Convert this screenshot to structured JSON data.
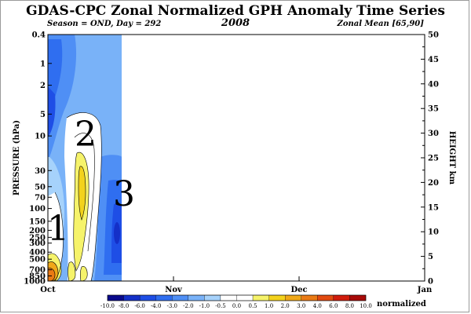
{
  "chart_data": {
    "type": "heatmap",
    "title": "GDAS-CPC Zonal Normalized GPH Anomaly Time Series",
    "subtitle_left": "Season = OND, Day = 292",
    "subtitle_center": "2008",
    "subtitle_right": "Zonal Mean [65,90]",
    "ylabel_left": "PRESSURE (hPa)",
    "ylabel_right": "HEIGHT  km",
    "pressure_ticks": [
      "0.4",
      "1",
      "2",
      "5",
      "10",
      "30",
      "50",
      "70",
      "100",
      "150",
      "200",
      "250",
      "300",
      "400",
      "500",
      "700",
      "850",
      "1000"
    ],
    "height_ticks": [
      "0",
      "5",
      "10",
      "15",
      "20",
      "25",
      "30",
      "35",
      "40",
      "45",
      "50"
    ],
    "x_ticks": [
      "Oct",
      "Nov",
      "Dec",
      "Jan"
    ],
    "colorbar": {
      "label": "normalized",
      "tick_labels": [
        "-10.0",
        "-8.0",
        "-6.0",
        "-4.0",
        "-3.0",
        "-2.0",
        "-1.0",
        "-0.5",
        "0.0",
        "0.5",
        "1.0",
        "2.0",
        "3.0",
        "4.0",
        "6.0",
        "8.0",
        "10.0"
      ],
      "colors": [
        "#0a0a8c",
        "#1430c8",
        "#1e4ee6",
        "#2f6ef0",
        "#4f8ff5",
        "#79b2f8",
        "#a6d2fb",
        "#ffffff",
        "#ffffff",
        "#f6f36a",
        "#f3d21c",
        "#f0a818",
        "#ea7a14",
        "#e24a10",
        "#d11c0c",
        "#a80a08"
      ]
    },
    "annotations": [
      {
        "text": "1"
      },
      {
        "text": "2"
      },
      {
        "text": "3"
      }
    ],
    "grid": false
  }
}
